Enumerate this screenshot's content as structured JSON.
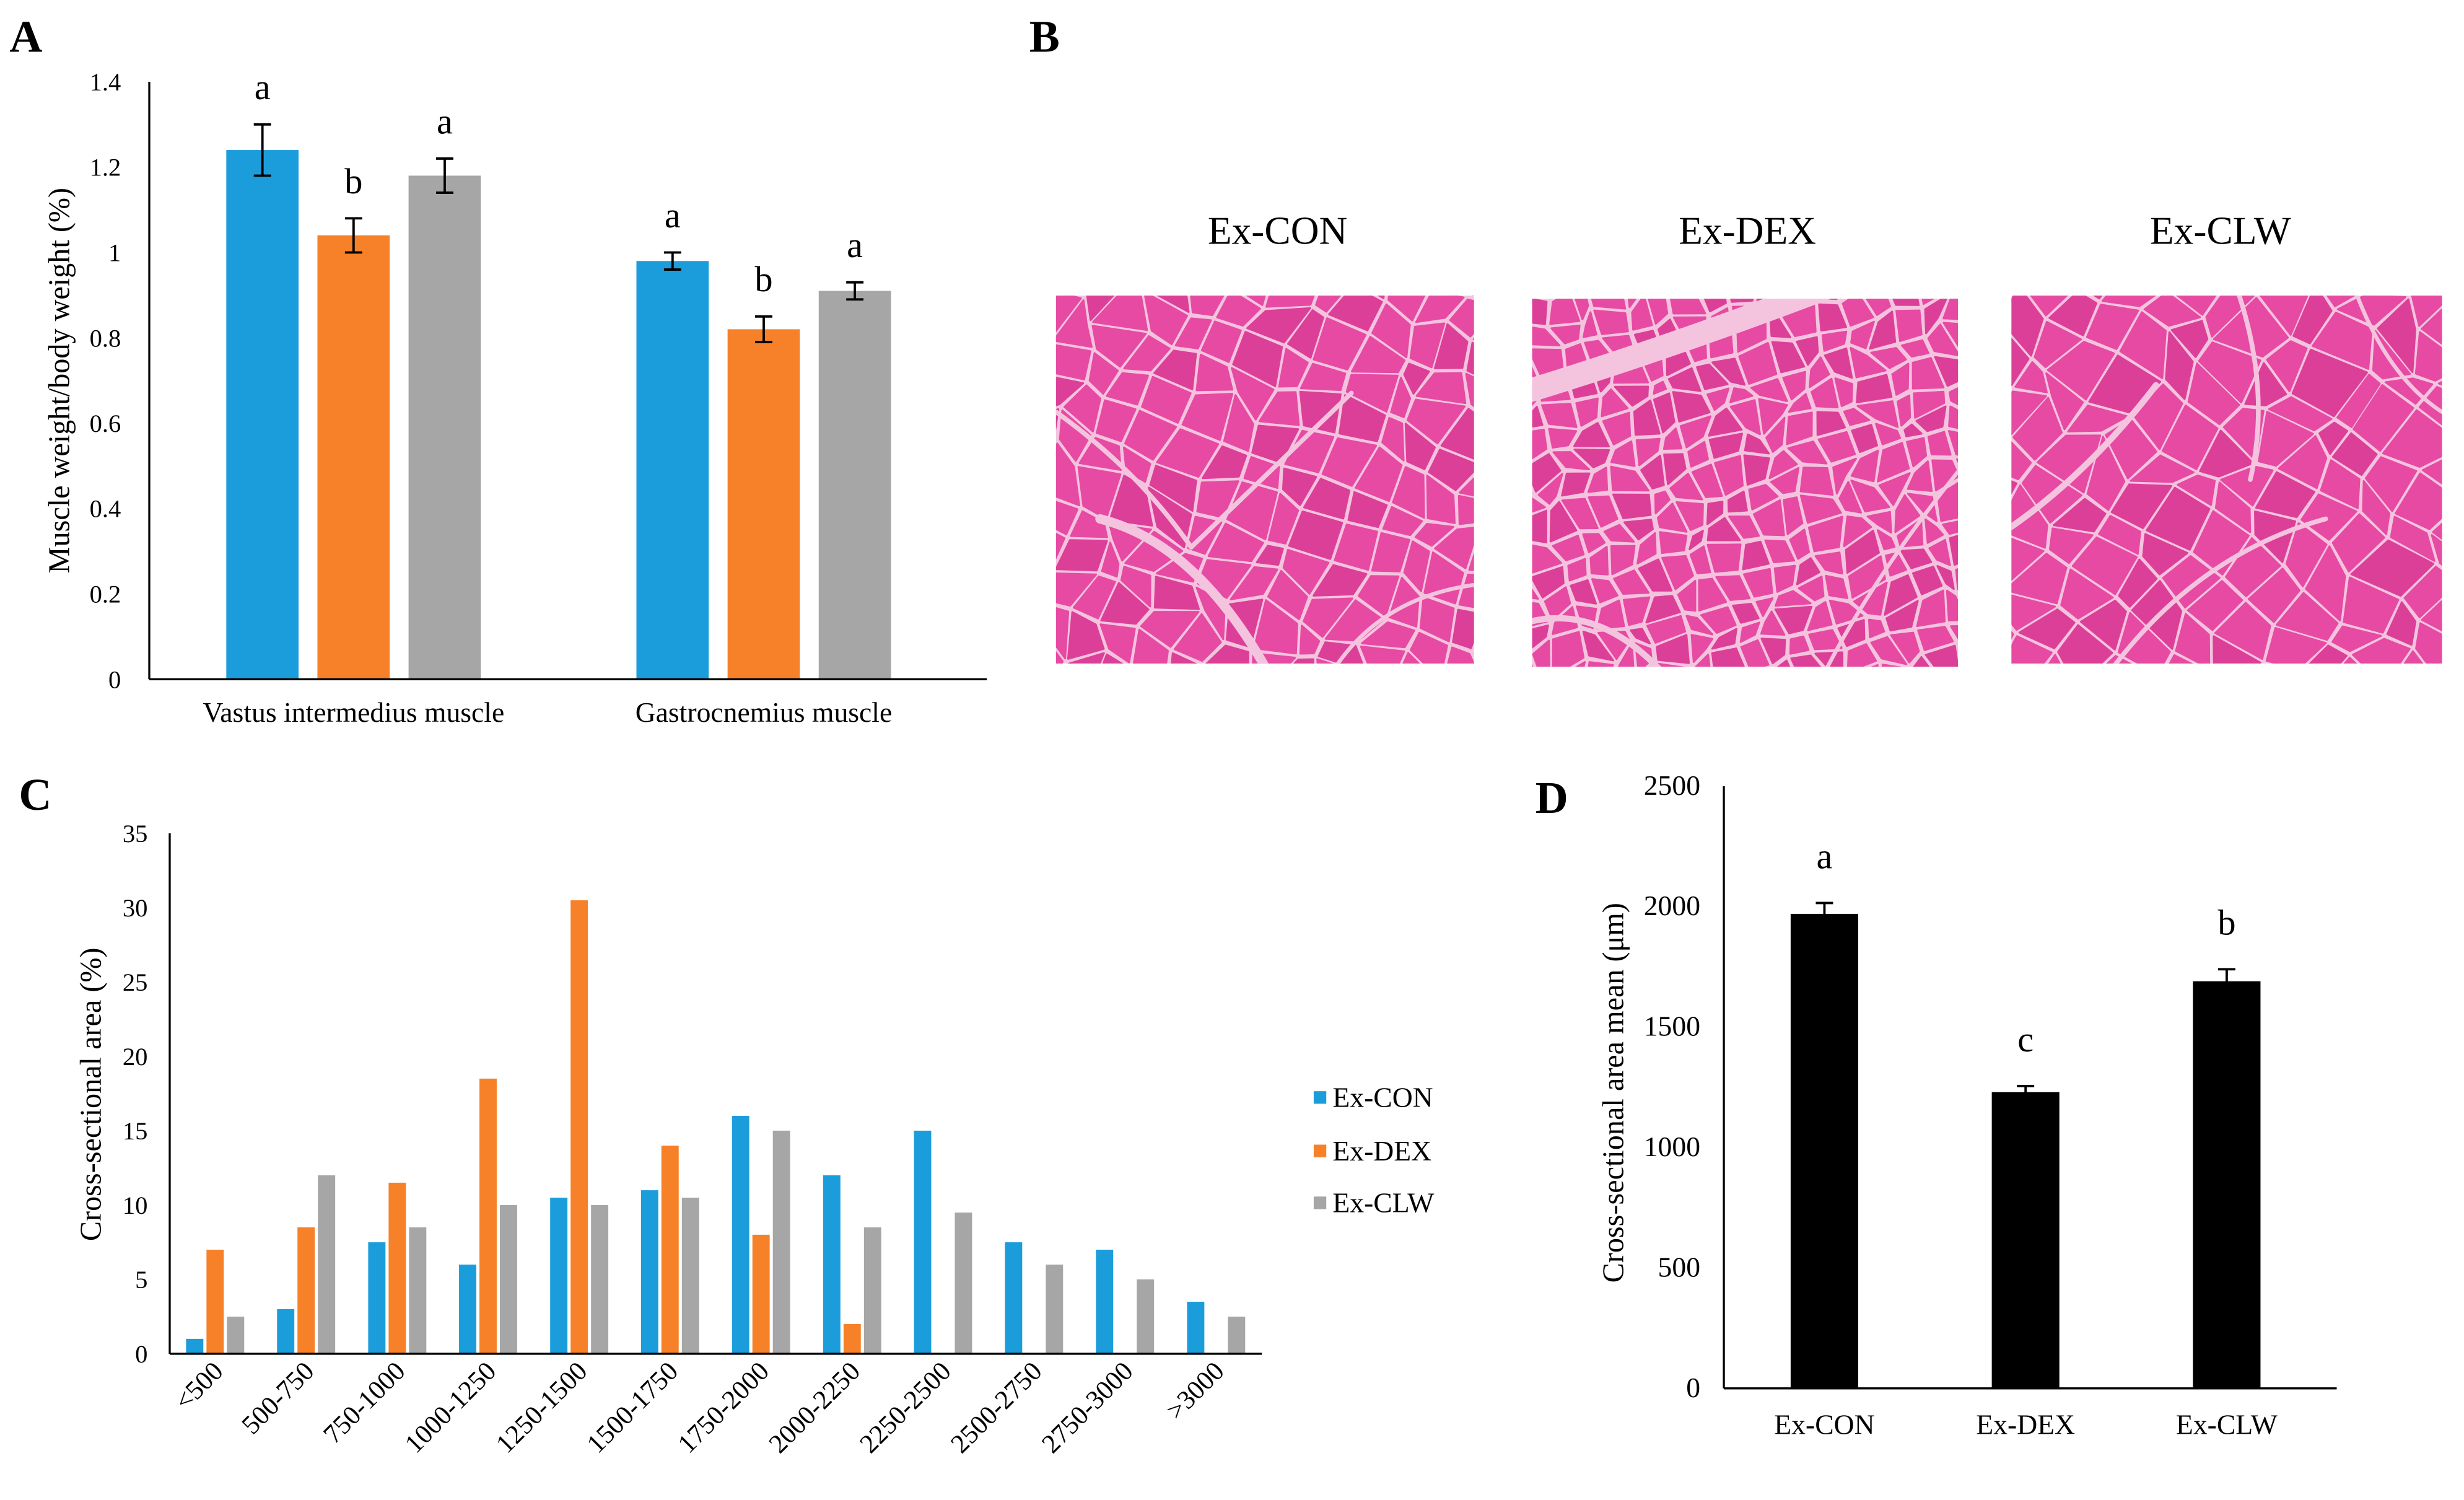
{
  "panels": {
    "a_label": "A",
    "b_label": "B",
    "c_label": "C",
    "d_label": "D"
  },
  "histology": {
    "titles": [
      "Ex-CON",
      "Ex-DEX",
      "Ex-CLW"
    ],
    "fiber_color": "#e64aa3",
    "fiber_color_alt": "#dc3f98",
    "stroma_color": "#f4c4df"
  },
  "chart_data": [
    {
      "type": "bar",
      "ylabel": "Muscle weight/body weight (%)",
      "categories": [
        "Vastus intermedius muscle",
        "Gastrocnemius muscle"
      ],
      "ylim": [
        0,
        1.4
      ],
      "yticks": [
        "0",
        "0.2",
        "0.4",
        "0.6",
        "0.8",
        "1",
        "1.2",
        "1.4"
      ],
      "grid": false,
      "series": [
        {
          "color": "#1c9ddb",
          "values": [
            1.24,
            0.98
          ],
          "errors": [
            0.06,
            0.02
          ],
          "significance": [
            "a",
            "a"
          ]
        },
        {
          "color": "#f78128",
          "values": [
            1.04,
            0.82
          ],
          "errors": [
            0.04,
            0.03
          ],
          "significance": [
            "b",
            "b"
          ]
        },
        {
          "color": "#a6a6a6",
          "values": [
            1.18,
            0.91
          ],
          "errors": [
            0.04,
            0.02
          ],
          "significance": [
            "a",
            "a"
          ]
        }
      ]
    },
    {
      "type": "bar",
      "ylabel": "Cross-sectional area (%)",
      "categories": [
        "<500",
        "500-750",
        "750-1000",
        "1000-1250",
        "1250-1500",
        "1500-1750",
        "1750-2000",
        "2000-2250",
        "2250-2500",
        "2500-2750",
        "2750-3000",
        ">3000"
      ],
      "ylim": [
        0,
        35
      ],
      "yticks": [
        "0",
        "5",
        "10",
        "15",
        "20",
        "25",
        "30",
        "35"
      ],
      "grid": false,
      "legend": "right",
      "series": [
        {
          "name": "Ex-CON",
          "color": "#1c9ddb",
          "values": [
            1,
            3,
            7.5,
            6,
            10.5,
            11,
            16,
            12,
            15,
            7.5,
            7,
            3.5
          ]
        },
        {
          "name": "Ex-DEX",
          "color": "#f78128",
          "values": [
            7,
            8.5,
            11.5,
            18.5,
            30.5,
            14,
            8,
            2,
            0,
            0,
            0,
            0
          ]
        },
        {
          "name": "Ex-CLW",
          "color": "#a6a6a6",
          "values": [
            2.5,
            12,
            8.5,
            10,
            10,
            10.5,
            15,
            8.5,
            9.5,
            6,
            5,
            2.5
          ]
        }
      ]
    },
    {
      "type": "bar",
      "ylabel": "Cross-sectional area mean (μm)",
      "categories": [
        "Ex-CON",
        "Ex-DEX",
        "Ex-CLW"
      ],
      "ylim": [
        0,
        2500
      ],
      "yticks": [
        "0",
        "500",
        "1000",
        "1500",
        "2000",
        "2500"
      ],
      "grid": false,
      "series": [
        {
          "color": "#000000",
          "values": [
            1970,
            1230,
            1690
          ],
          "errors": [
            45,
            25,
            50
          ],
          "significance": [
            "a",
            "c",
            "b"
          ]
        }
      ]
    }
  ]
}
